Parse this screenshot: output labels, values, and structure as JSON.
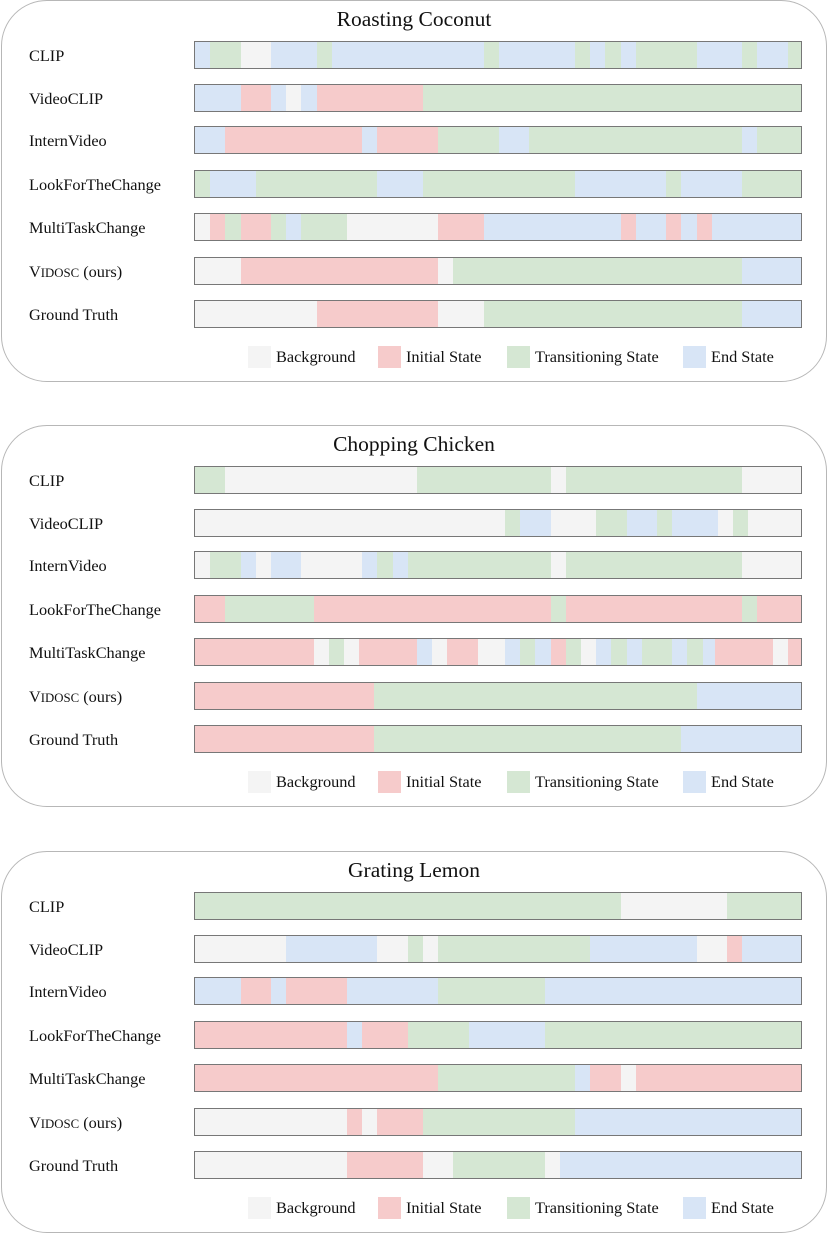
{
  "chart_data": [
    {
      "type": "timeline",
      "title": "Roasting Coconut",
      "rows": [
        {
          "label": "CLIP",
          "segments": [
            [
              0,
              2.5,
              "end"
            ],
            [
              2.5,
              7.5,
              "transition"
            ],
            [
              7.5,
              12.5,
              "background"
            ],
            [
              12.5,
              20,
              "end"
            ],
            [
              20,
              22.5,
              "transition"
            ],
            [
              22.5,
              47.5,
              "end"
            ],
            [
              47.5,
              50,
              "transition"
            ],
            [
              50,
              62.5,
              "end"
            ],
            [
              62.5,
              65,
              "transition"
            ],
            [
              65,
              67.5,
              "end"
            ],
            [
              67.5,
              70,
              "transition"
            ],
            [
              70,
              72.5,
              "end"
            ],
            [
              72.5,
              82.5,
              "transition"
            ],
            [
              82.5,
              90,
              "end"
            ],
            [
              90,
              92.5,
              "transition"
            ],
            [
              92.5,
              97.5,
              "end"
            ],
            [
              97.5,
              100,
              "transition"
            ]
          ]
        },
        {
          "label": "VideoCLIP",
          "segments": [
            [
              0,
              7.5,
              "end"
            ],
            [
              7.5,
              12.5,
              "initial"
            ],
            [
              12.5,
              15,
              "end"
            ],
            [
              15,
              17.5,
              "background"
            ],
            [
              17.5,
              20,
              "end"
            ],
            [
              20,
              37.5,
              "initial"
            ],
            [
              37.5,
              100,
              "transition"
            ]
          ]
        },
        {
          "label": "InternVideo",
          "segments": [
            [
              0,
              5,
              "end"
            ],
            [
              5,
              27.5,
              "initial"
            ],
            [
              27.5,
              30,
              "end"
            ],
            [
              30,
              40,
              "initial"
            ],
            [
              40,
              50,
              "transition"
            ],
            [
              50,
              55,
              "end"
            ],
            [
              55,
              90,
              "transition"
            ],
            [
              90,
              92.5,
              "end"
            ],
            [
              92.5,
              100,
              "transition"
            ]
          ]
        },
        {
          "label": "LookForTheChange",
          "segments": [
            [
              0,
              2.5,
              "transition"
            ],
            [
              2.5,
              10,
              "end"
            ],
            [
              10,
              30,
              "transition"
            ],
            [
              30,
              37.5,
              "end"
            ],
            [
              37.5,
              62.5,
              "transition"
            ],
            [
              62.5,
              77.5,
              "end"
            ],
            [
              77.5,
              80,
              "transition"
            ],
            [
              80,
              90,
              "end"
            ],
            [
              90,
              100,
              "transition"
            ]
          ]
        },
        {
          "label": "MultiTaskChange",
          "segments": [
            [
              0,
              2.5,
              "background"
            ],
            [
              2.5,
              5,
              "initial"
            ],
            [
              5,
              7.5,
              "transition"
            ],
            [
              7.5,
              12.5,
              "initial"
            ],
            [
              12.5,
              15,
              "transition"
            ],
            [
              15,
              17.5,
              "end"
            ],
            [
              17.5,
              25,
              "transition"
            ],
            [
              25,
              40,
              "background"
            ],
            [
              40,
              47.5,
              "initial"
            ],
            [
              47.5,
              70,
              "end"
            ],
            [
              70,
              72.5,
              "initial"
            ],
            [
              72.5,
              77.5,
              "end"
            ],
            [
              77.5,
              80,
              "initial"
            ],
            [
              80,
              82.5,
              "end"
            ],
            [
              82.5,
              85,
              "initial"
            ],
            [
              85,
              100,
              "end"
            ]
          ]
        },
        {
          "label": "VIDOSC (ours)",
          "segments": [
            [
              0,
              7.5,
              "background"
            ],
            [
              7.5,
              40,
              "initial"
            ],
            [
              40,
              42.5,
              "background"
            ],
            [
              42.5,
              90,
              "transition"
            ],
            [
              90,
              100,
              "end"
            ]
          ]
        },
        {
          "label": "Ground Truth",
          "segments": [
            [
              0,
              20,
              "background"
            ],
            [
              20,
              40,
              "initial"
            ],
            [
              40,
              47.5,
              "background"
            ],
            [
              47.5,
              90,
              "transition"
            ],
            [
              90,
              100,
              "end"
            ]
          ]
        }
      ]
    },
    {
      "type": "timeline",
      "title": "Chopping Chicken",
      "rows": [
        {
          "label": "CLIP",
          "segments": [
            [
              0,
              5,
              "transition"
            ],
            [
              5,
              36.5,
              "background"
            ],
            [
              36.5,
              58.5,
              "transition"
            ],
            [
              58.5,
              61,
              "background"
            ],
            [
              61,
              90,
              "transition"
            ],
            [
              90,
              100,
              "background"
            ]
          ]
        },
        {
          "label": "VideoCLIP",
          "segments": [
            [
              0,
              51,
              "background"
            ],
            [
              51,
              53.5,
              "transition"
            ],
            [
              53.5,
              58.5,
              "end"
            ],
            [
              58.5,
              66,
              "background"
            ],
            [
              66,
              71,
              "transition"
            ],
            [
              71,
              76,
              "end"
            ],
            [
              76,
              78.5,
              "transition"
            ],
            [
              78.5,
              86,
              "end"
            ],
            [
              86,
              88.5,
              "background"
            ],
            [
              88.5,
              91,
              "transition"
            ],
            [
              91,
              100,
              "background"
            ]
          ]
        },
        {
          "label": "InternVideo",
          "segments": [
            [
              0,
              2.5,
              "background"
            ],
            [
              2.5,
              7.5,
              "transition"
            ],
            [
              7.5,
              10,
              "end"
            ],
            [
              10,
              12.5,
              "background"
            ],
            [
              12.5,
              17.5,
              "end"
            ],
            [
              17.5,
              27.5,
              "background"
            ],
            [
              27.5,
              30,
              "end"
            ],
            [
              30,
              32.5,
              "transition"
            ],
            [
              32.5,
              35,
              "end"
            ],
            [
              35,
              58.5,
              "transition"
            ],
            [
              58.5,
              61,
              "background"
            ],
            [
              61,
              90,
              "transition"
            ],
            [
              90,
              100,
              "background"
            ]
          ]
        },
        {
          "label": "LookForTheChange",
          "segments": [
            [
              0,
              5,
              "initial"
            ],
            [
              5,
              19.5,
              "transition"
            ],
            [
              19.5,
              58.5,
              "initial"
            ],
            [
              58.5,
              61,
              "transition"
            ],
            [
              61,
              90,
              "initial"
            ],
            [
              90,
              92.5,
              "transition"
            ],
            [
              92.5,
              100,
              "initial"
            ]
          ]
        },
        {
          "label": "MultiTaskChange",
          "segments": [
            [
              0,
              19.5,
              "initial"
            ],
            [
              19.5,
              22,
              "background"
            ],
            [
              22,
              24.5,
              "transition"
            ],
            [
              24.5,
              27,
              "background"
            ],
            [
              27,
              36.5,
              "initial"
            ],
            [
              36.5,
              39,
              "end"
            ],
            [
              39,
              41.5,
              "background"
            ],
            [
              41.5,
              46.5,
              "initial"
            ],
            [
              46.5,
              51,
              "background"
            ],
            [
              51,
              53.5,
              "end"
            ],
            [
              53.5,
              56,
              "transition"
            ],
            [
              56,
              58.5,
              "end"
            ],
            [
              58.5,
              61,
              "initial"
            ],
            [
              61,
              63.5,
              "transition"
            ],
            [
              63.5,
              66,
              "background"
            ],
            [
              66,
              68.5,
              "end"
            ],
            [
              68.5,
              71,
              "transition"
            ],
            [
              71,
              73.5,
              "end"
            ],
            [
              73.5,
              78.5,
              "transition"
            ],
            [
              78.5,
              81,
              "end"
            ],
            [
              81,
              83.5,
              "transition"
            ],
            [
              83.5,
              85.5,
              "end"
            ],
            [
              85.5,
              95,
              "initial"
            ],
            [
              95,
              97.5,
              "background"
            ],
            [
              97.5,
              100,
              "initial"
            ]
          ]
        },
        {
          "label": "VIDOSC (ours)",
          "segments": [
            [
              0,
              29.5,
              "initial"
            ],
            [
              29.5,
              82.5,
              "transition"
            ],
            [
              82.5,
              100,
              "end"
            ]
          ]
        },
        {
          "label": "Ground Truth",
          "segments": [
            [
              0,
              29.5,
              "initial"
            ],
            [
              29.5,
              80,
              "transition"
            ],
            [
              80,
              100,
              "end"
            ]
          ]
        }
      ]
    },
    {
      "type": "timeline",
      "title": "Grating Lemon",
      "rows": [
        {
          "label": "CLIP",
          "segments": [
            [
              0,
              70,
              "transition"
            ],
            [
              70,
              87.5,
              "background"
            ],
            [
              87.5,
              100,
              "transition"
            ]
          ]
        },
        {
          "label": "VideoCLIP",
          "segments": [
            [
              0,
              15,
              "background"
            ],
            [
              15,
              30,
              "end"
            ],
            [
              30,
              35,
              "background"
            ],
            [
              35,
              37.5,
              "transition"
            ],
            [
              37.5,
              40,
              "background"
            ],
            [
              40,
              65,
              "transition"
            ],
            [
              65,
              82.5,
              "end"
            ],
            [
              82.5,
              87.5,
              "background"
            ],
            [
              87.5,
              90,
              "initial"
            ],
            [
              90,
              100,
              "end"
            ]
          ]
        },
        {
          "label": "InternVideo",
          "segments": [
            [
              0,
              7.5,
              "end"
            ],
            [
              7.5,
              12.5,
              "initial"
            ],
            [
              12.5,
              15,
              "end"
            ],
            [
              15,
              25,
              "initial"
            ],
            [
              25,
              40,
              "end"
            ],
            [
              40,
              57.5,
              "transition"
            ],
            [
              57.5,
              100,
              "end"
            ]
          ]
        },
        {
          "label": "LookForTheChange",
          "segments": [
            [
              0,
              25,
              "initial"
            ],
            [
              25,
              27.5,
              "end"
            ],
            [
              27.5,
              35,
              "initial"
            ],
            [
              35,
              45,
              "transition"
            ],
            [
              45,
              57.5,
              "end"
            ],
            [
              57.5,
              100,
              "transition"
            ]
          ]
        },
        {
          "label": "MultiTaskChange",
          "segments": [
            [
              0,
              40,
              "initial"
            ],
            [
              40,
              62.5,
              "transition"
            ],
            [
              62.5,
              65,
              "end"
            ],
            [
              65,
              70,
              "initial"
            ],
            [
              70,
              72.5,
              "background"
            ],
            [
              72.5,
              100,
              "initial"
            ]
          ]
        },
        {
          "label": "VIDOSC (ours)",
          "segments": [
            [
              0,
              25,
              "background"
            ],
            [
              25,
              27.5,
              "initial"
            ],
            [
              27.5,
              30,
              "background"
            ],
            [
              30,
              37.5,
              "initial"
            ],
            [
              37.5,
              62.5,
              "transition"
            ],
            [
              62.5,
              100,
              "end"
            ]
          ]
        },
        {
          "label": "Ground Truth",
          "segments": [
            [
              0,
              25,
              "background"
            ],
            [
              25,
              37.5,
              "initial"
            ],
            [
              37.5,
              42.5,
              "background"
            ],
            [
              42.5,
              57.5,
              "transition"
            ],
            [
              57.5,
              60,
              "background"
            ],
            [
              60,
              100,
              "end"
            ]
          ]
        }
      ]
    }
  ],
  "legend": [
    {
      "key": "background",
      "label": "Background",
      "color": "#f4f4f4"
    },
    {
      "key": "initial",
      "label": "Initial State",
      "color": "#f6cbcb"
    },
    {
      "key": "transition",
      "label": "Transitioning State",
      "color": "#d5e7d3"
    },
    {
      "key": "end",
      "label": "End State",
      "color": "#d8e5f6"
    }
  ]
}
